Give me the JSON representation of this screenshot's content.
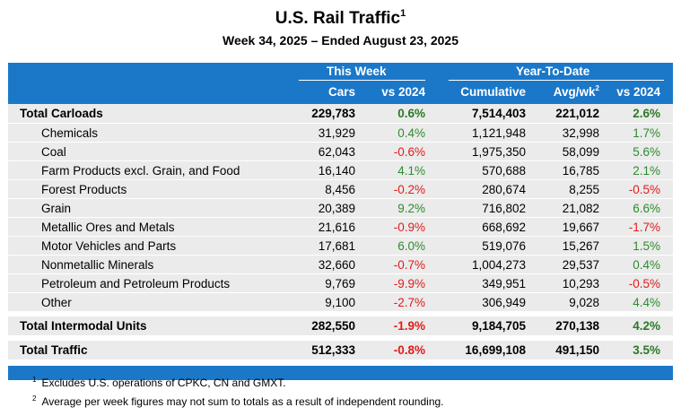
{
  "title": {
    "text": "U.S. Rail Traffic",
    "footnote_mark": "1"
  },
  "subtitle": "Week 34, 2025 – Ended August 23, 2025",
  "header": {
    "group_this_week": "This Week",
    "group_ytd": "Year-To-Date",
    "col_cars": "Cars",
    "col_vs_week": "vs 2024",
    "col_cumulative": "Cumulative",
    "col_avg": "Avg/wk",
    "col_avg_mark": "2",
    "col_vs_ytd": "vs 2024"
  },
  "rows": [
    {
      "label": "Total Carloads",
      "cars": "229,783",
      "wk_change": "0.6%",
      "cumulative": "7,514,403",
      "avg": "221,012",
      "ytd_change": "2.6%"
    },
    {
      "label": "Chemicals",
      "cars": "31,929",
      "wk_change": "0.4%",
      "cumulative": "1,121,948",
      "avg": "32,998",
      "ytd_change": "1.7%"
    },
    {
      "label": "Coal",
      "cars": "62,043",
      "wk_change": "-0.6%",
      "cumulative": "1,975,350",
      "avg": "58,099",
      "ytd_change": "5.6%"
    },
    {
      "label": "Farm Products excl. Grain, and Food",
      "cars": "16,140",
      "wk_change": "4.1%",
      "cumulative": "570,688",
      "avg": "16,785",
      "ytd_change": "2.1%"
    },
    {
      "label": "Forest Products",
      "cars": "8,456",
      "wk_change": "-0.2%",
      "cumulative": "280,674",
      "avg": "8,255",
      "ytd_change": "-0.5%"
    },
    {
      "label": "Grain",
      "cars": "20,389",
      "wk_change": "9.2%",
      "cumulative": "716,802",
      "avg": "21,082",
      "ytd_change": "6.6%"
    },
    {
      "label": "Metallic Ores and Metals",
      "cars": "21,616",
      "wk_change": "-0.9%",
      "cumulative": "668,692",
      "avg": "19,667",
      "ytd_change": "-1.7%"
    },
    {
      "label": "Motor Vehicles and Parts",
      "cars": "17,681",
      "wk_change": "6.0%",
      "cumulative": "519,076",
      "avg": "15,267",
      "ytd_change": "1.5%"
    },
    {
      "label": "Nonmetallic Minerals",
      "cars": "32,660",
      "wk_change": "-0.7%",
      "cumulative": "1,004,273",
      "avg": "29,537",
      "ytd_change": "0.4%"
    },
    {
      "label": "Petroleum and Petroleum Products",
      "cars": "9,769",
      "wk_change": "-9.9%",
      "cumulative": "349,951",
      "avg": "10,293",
      "ytd_change": "-0.5%"
    },
    {
      "label": "Other",
      "cars": "9,100",
      "wk_change": "-2.7%",
      "cumulative": "306,949",
      "avg": "9,028",
      "ytd_change": "4.4%"
    },
    {
      "label": "Total Intermodal Units",
      "cars": "282,550",
      "wk_change": "-1.9%",
      "cumulative": "9,184,705",
      "avg": "270,138",
      "ytd_change": "4.2%"
    },
    {
      "label": "Total Traffic",
      "cars": "512,333",
      "wk_change": "-0.8%",
      "cumulative": "16,699,108",
      "avg": "491,150",
      "ytd_change": "3.5%"
    }
  ],
  "footnotes": [
    {
      "mark": "1",
      "text": "Excludes U.S. operations of CPKC, CN and GMXT."
    },
    {
      "mark": "2",
      "text": "Average per week figures may not sum to totals as a result of independent rounding."
    }
  ],
  "colors": {
    "header_blue": "#1b78c9",
    "row_gray": "#ebebeb",
    "positive_green": "#2e8b2e",
    "negative_red": "#e11b1b"
  }
}
